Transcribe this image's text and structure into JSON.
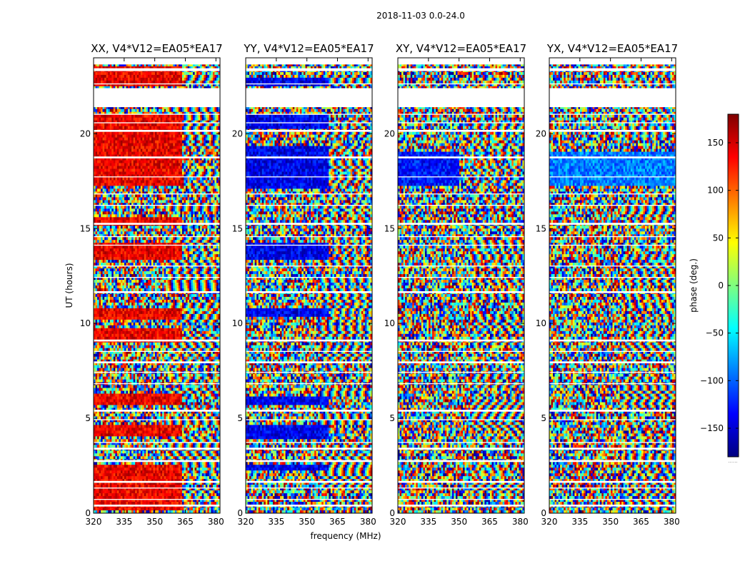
{
  "chart_data": {
    "type": "heatmap",
    "suptitle": "2018-11-03 0.0-24.0",
    "xlabel": "frequency (MHz)",
    "ylabel": "UT (hours)",
    "xlim": [
      320,
      382
    ],
    "ylim": [
      0,
      24
    ],
    "xticks": [
      320,
      335,
      350,
      365,
      380
    ],
    "yticks": [
      0,
      5,
      10,
      15,
      20
    ],
    "colorbar": {
      "label": "phase (deg.)",
      "range": [
        -180,
        180
      ],
      "ticks": [
        150,
        100,
        50,
        0,
        -50,
        -100,
        -150
      ],
      "tick_labels": [
        "150",
        "100",
        "50",
        "0",
        "−50",
        "−100",
        "−150"
      ],
      "colormap": [
        "#00007f",
        "#0000ff",
        "#007fff",
        "#00ffff",
        "#7fff7f",
        "#ffff00",
        "#ff7f00",
        "#ff0000",
        "#7f0000"
      ],
      "footer": "......"
    },
    "panels": [
      {
        "title": "XX, V4*V12=EA05*EA17",
        "base_phase": 140,
        "coherent_band_mhz": [
          320,
          363
        ],
        "coherent_rows_ut": [
          [
            0.2,
            2.6
          ],
          [
            4.0,
            4.7
          ],
          [
            5.7,
            6.3
          ],
          [
            9.0,
            9.8
          ],
          [
            10.2,
            10.8
          ],
          [
            13.4,
            14.3
          ],
          [
            15.2,
            15.6
          ],
          [
            17.2,
            21.0
          ],
          [
            22.5,
            23.6
          ]
        ]
      },
      {
        "title": "YY, V4*V12=EA05*EA17",
        "base_phase": -140,
        "coherent_band_mhz": [
          320,
          361
        ],
        "coherent_rows_ut": [
          [
            2.3,
            2.6
          ],
          [
            3.9,
            4.6
          ],
          [
            5.7,
            6.1
          ],
          [
            10.3,
            10.8
          ],
          [
            13.4,
            14.3
          ],
          [
            17.1,
            19.3
          ],
          [
            20.2,
            21.0
          ],
          [
            22.5,
            23.0
          ]
        ]
      },
      {
        "title": "XY, V4*V12=EA05*EA17",
        "base_phase": -130,
        "coherent_band_mhz": [
          320,
          350
        ],
        "coherent_rows_ut": [
          [
            17.3,
            19.0
          ]
        ]
      },
      {
        "title": "YX, V4*V12=EA05*EA17",
        "base_phase": -90,
        "coherent_band_mhz": [
          320,
          382
        ],
        "coherent_rows_ut": [
          [
            17.2,
            19.1
          ]
        ]
      }
    ],
    "gaps_ut": [
      [
        0.35,
        0.45
      ],
      [
        0.7,
        0.75
      ],
      [
        1.3,
        1.35
      ],
      [
        1.6,
        1.7
      ],
      [
        2.7,
        2.8
      ],
      [
        3.35,
        3.45
      ],
      [
        3.7,
        3.75
      ],
      [
        4.9,
        4.95
      ],
      [
        5.35,
        5.45
      ],
      [
        6.8,
        6.85
      ],
      [
        7.4,
        7.45
      ],
      [
        7.9,
        8.0
      ],
      [
        8.5,
        8.55
      ],
      [
        9.05,
        9.15
      ],
      [
        11.6,
        11.7
      ],
      [
        12.4,
        12.45
      ],
      [
        13.0,
        13.05
      ],
      [
        14.1,
        14.15
      ],
      [
        14.55,
        14.6
      ],
      [
        15.2,
        15.3
      ],
      [
        16.2,
        16.25
      ],
      [
        16.8,
        16.85
      ],
      [
        17.7,
        17.75
      ],
      [
        18.7,
        18.8
      ],
      [
        20.1,
        20.2
      ],
      [
        20.55,
        20.6
      ],
      [
        21.0,
        21.05
      ],
      [
        21.4,
        22.4
      ],
      [
        22.6,
        22.65
      ],
      [
        23.3,
        23.45
      ],
      [
        23.65,
        24.0
      ]
    ]
  }
}
